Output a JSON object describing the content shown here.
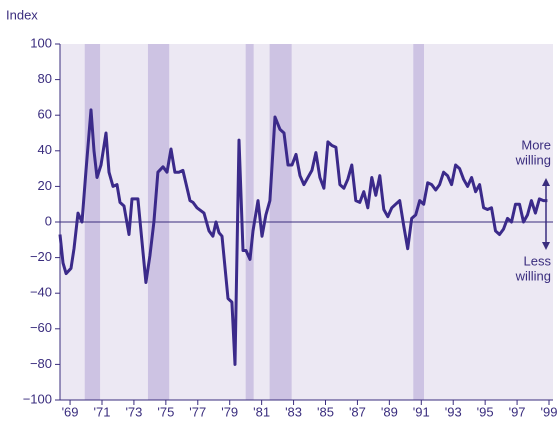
{
  "chart_data": {
    "type": "line",
    "y_axis_label": "Index",
    "annotations": {
      "up": [
        "More",
        "willing"
      ],
      "down": [
        "Less",
        "willing"
      ]
    },
    "recessions": [
      [
        1969.92,
        1970.88
      ],
      [
        1973.88,
        1975.21
      ],
      [
        1980.0,
        1980.5
      ],
      [
        1981.5,
        1982.88
      ],
      [
        1990.5,
        1991.17
      ]
    ],
    "recession_color": "#cdc3e3",
    "background": "#ece8f3",
    "zero_line": true,
    "series": [
      {
        "name": "Index",
        "color": "#3b2a8a",
        "x": [
          1968.37,
          1968.56,
          1968.75,
          1969.06,
          1969.25,
          1969.5,
          1969.75,
          1970.0,
          1970.31,
          1970.5,
          1970.69,
          1970.94,
          1971.25,
          1971.44,
          1971.69,
          1971.94,
          1972.13,
          1972.38,
          1972.69,
          1972.88,
          1973.25,
          1973.75,
          1974.0,
          1974.25,
          1974.5,
          1974.82,
          1975.07,
          1975.32,
          1975.57,
          1975.82,
          1976.07,
          1976.51,
          1976.7,
          1976.95,
          1977.39,
          1977.7,
          1977.95,
          1978.14,
          1978.33,
          1978.52,
          1978.89,
          1979.14,
          1979.33,
          1979.58,
          1979.83,
          1980.02,
          1980.27,
          1980.46,
          1980.77,
          1981.02,
          1981.27,
          1981.52,
          1981.84,
          1982.15,
          1982.4,
          1982.65,
          1982.9,
          1983.15,
          1983.4,
          1983.65,
          1983.9,
          1984.15,
          1984.4,
          1984.65,
          1984.9,
          1985.15,
          1985.4,
          1985.65,
          1985.9,
          1986.15,
          1986.4,
          1986.65,
          1986.9,
          1987.15,
          1987.4,
          1987.65,
          1987.9,
          1988.15,
          1988.4,
          1988.65,
          1988.9,
          1989.15,
          1989.4,
          1989.65,
          1989.9,
          1990.15,
          1990.4,
          1990.65,
          1990.9,
          1991.15,
          1991.4,
          1991.65,
          1991.9,
          1992.15,
          1992.4,
          1992.65,
          1992.9,
          1993.15,
          1993.4,
          1993.65,
          1993.9,
          1994.15,
          1994.4,
          1994.65,
          1994.9,
          1995.15,
          1995.4,
          1995.65,
          1995.9,
          1996.15,
          1996.4,
          1996.65,
          1996.9,
          1997.15,
          1997.4,
          1997.65,
          1997.9,
          1998.15,
          1998.4,
          1998.65,
          1998.9
        ],
        "values": [
          -7,
          -23,
          -29,
          -26,
          -15,
          5,
          0,
          29,
          63,
          40,
          25,
          32,
          50,
          28,
          20,
          21,
          11,
          9,
          -7,
          13,
          13,
          -34,
          -19,
          0,
          28,
          31,
          28,
          41,
          28,
          28,
          29,
          12,
          11,
          8,
          5,
          -5,
          -8,
          0,
          -6,
          -8,
          -43,
          -45,
          -80,
          46,
          -16,
          -16,
          -21,
          -5,
          12,
          -8,
          4,
          12,
          59,
          52,
          50,
          32,
          32,
          38,
          26,
          21,
          25,
          29,
          39,
          25,
          19,
          45,
          43,
          42,
          21,
          19,
          24,
          32,
          12,
          11,
          17,
          8,
          25,
          15,
          26,
          7,
          3,
          8,
          10,
          12,
          -2,
          -15,
          2,
          4,
          12,
          10,
          22,
          21,
          18,
          21,
          28,
          26,
          21,
          32,
          30,
          24,
          20,
          25,
          17,
          21,
          8,
          7,
          8,
          -5,
          -7,
          -4,
          2,
          0,
          10,
          10,
          0,
          4,
          12,
          5,
          13,
          12,
          12
        ]
      }
    ],
    "xlim": [
      1968.37,
      1999.25
    ],
    "ylim": [
      -100,
      100
    ],
    "xticks": [
      {
        "value": 1969,
        "label": "'69"
      },
      {
        "value": 1971,
        "label": "'71"
      },
      {
        "value": 1973,
        "label": "'73"
      },
      {
        "value": 1975,
        "label": "'75"
      },
      {
        "value": 1977,
        "label": "'77"
      },
      {
        "value": 1979,
        "label": "'79"
      },
      {
        "value": 1981,
        "label": "'81"
      },
      {
        "value": 1983,
        "label": "'83"
      },
      {
        "value": 1985,
        "label": "'85"
      },
      {
        "value": 1987,
        "label": "'87"
      },
      {
        "value": 1989,
        "label": "'89"
      },
      {
        "value": 1991,
        "label": "'91"
      },
      {
        "value": 1993,
        "label": "'93"
      },
      {
        "value": 1995,
        "label": "'95"
      },
      {
        "value": 1997,
        "label": "'97"
      },
      {
        "value": 1999,
        "label": "'99"
      }
    ],
    "yticks": [
      {
        "value": -100,
        "label": "−100"
      },
      {
        "value": -80,
        "label": "−80"
      },
      {
        "value": -60,
        "label": "−60"
      },
      {
        "value": -40,
        "label": "−40"
      },
      {
        "value": -20,
        "label": "−20"
      },
      0,
      20,
      40,
      60,
      80,
      100
    ]
  }
}
